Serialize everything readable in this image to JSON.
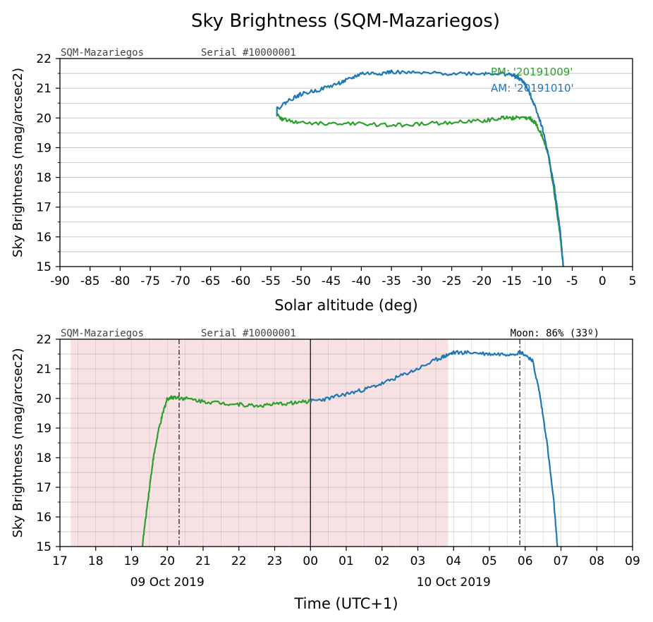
{
  "title": "Sky Brightness (SQM-Mazariegos)",
  "colors": {
    "pm": "#2ca02c",
    "am": "#1f77b4",
    "night_shade": "#f8e1e3",
    "axis": "#000000"
  },
  "chart_data": [
    {
      "type": "line",
      "header_left": "SQM-Mazariegos",
      "header_serial": "Serial #10000001",
      "xlabel": "Solar altitude (deg)",
      "ylabel": "Sky Brightness (mag/arcsec2)",
      "xlim": [
        -90,
        5
      ],
      "ylim": [
        15,
        22
      ],
      "xticks": [
        "-90",
        "-85",
        "-80",
        "-75",
        "-70",
        "-65",
        "-60",
        "-55",
        "-50",
        "-45",
        "-40",
        "-35",
        "-30",
        "-25",
        "-20",
        "-15",
        "-10",
        "-5",
        "0",
        "5"
      ],
      "yticks": [
        "15",
        "16",
        "17",
        "18",
        "19",
        "20",
        "21",
        "22"
      ],
      "grid": true,
      "legend": [
        "PM: '20191009'",
        "AM: '20191010'"
      ],
      "legend_placement": "top-right",
      "series": [
        {
          "name": "PM: '20191009'",
          "color": "#2ca02c",
          "x": [
            -6.5,
            -7,
            -8,
            -9,
            -10,
            -11,
            -12,
            -13,
            -15,
            -17,
            -20,
            -25,
            -30,
            -35,
            -40,
            -45,
            -50,
            -53,
            -54
          ],
          "y": [
            15.0,
            16.0,
            17.5,
            18.8,
            19.4,
            19.8,
            20.0,
            20.0,
            20.0,
            20.0,
            19.9,
            19.85,
            19.8,
            19.75,
            19.8,
            19.8,
            19.85,
            19.95,
            20.1
          ]
        },
        {
          "name": "AM: '20191010'",
          "color": "#1f77b4",
          "x": [
            -54,
            -54,
            -52,
            -50,
            -47,
            -44,
            -42,
            -40,
            -37,
            -35,
            -30,
            -25,
            -20,
            -17,
            -15,
            -14,
            -13,
            -12,
            -11,
            -10,
            -9,
            -8,
            -7,
            -6.5
          ],
          "y": [
            20.1,
            20.3,
            20.6,
            20.8,
            20.95,
            21.15,
            21.3,
            21.5,
            21.5,
            21.55,
            21.5,
            21.5,
            21.5,
            21.5,
            21.45,
            21.35,
            21.2,
            20.8,
            20.3,
            19.7,
            18.8,
            17.7,
            16.2,
            15.0
          ]
        }
      ]
    },
    {
      "type": "line",
      "header_left": "SQM-Mazariegos",
      "header_serial": "Serial #10000001",
      "header_moon": "Moon: 86% (33º)",
      "xlabel": "Time (UTC+1)",
      "ylabel": "Sky Brightness (mag/arcsec2)",
      "x_unit": "hours since 2019-10-09 00:00 (UTC+1)",
      "xlim": [
        17,
        33
      ],
      "ylim": [
        15,
        22
      ],
      "xticks": [
        "17",
        "18",
        "19",
        "20",
        "21",
        "22",
        "23",
        "00",
        "01",
        "02",
        "03",
        "04",
        "05",
        "06",
        "07",
        "08",
        "09"
      ],
      "date_labels": [
        {
          "x": 20,
          "text": "09 Oct 2019"
        },
        {
          "x": 28,
          "text": "10 Oct 2019"
        }
      ],
      "yticks": [
        "15",
        "16",
        "17",
        "18",
        "19",
        "20",
        "21",
        "22"
      ],
      "grid": true,
      "night_shade": [
        17.3,
        27.85
      ],
      "vlines_dashdot": [
        20.33,
        29.85
      ],
      "vline_solid": 24,
      "series": [
        {
          "name": "",
          "color": "#2ca02c",
          "x": [
            19.3,
            19.45,
            19.6,
            19.75,
            19.9,
            20.0,
            20.2,
            20.5,
            21.0,
            21.5,
            22.0,
            22.5,
            23.0,
            23.5,
            24.0
          ],
          "y": [
            15.0,
            16.5,
            17.9,
            18.9,
            19.6,
            20.0,
            20.05,
            20.0,
            19.9,
            19.85,
            19.8,
            19.75,
            19.8,
            19.85,
            19.9
          ]
        },
        {
          "name": "",
          "color": "#1f77b4",
          "x": [
            24.0,
            24.5,
            25.0,
            25.5,
            26.0,
            26.5,
            27.0,
            27.5,
            27.8,
            28.0,
            28.5,
            29.0,
            29.5,
            29.9,
            30.2,
            30.4,
            30.6,
            30.8,
            30.9
          ],
          "y": [
            19.9,
            20.0,
            20.15,
            20.3,
            20.5,
            20.75,
            21.0,
            21.3,
            21.45,
            21.55,
            21.55,
            21.5,
            21.5,
            21.55,
            21.3,
            20.2,
            18.6,
            16.5,
            15.0
          ]
        }
      ]
    }
  ]
}
